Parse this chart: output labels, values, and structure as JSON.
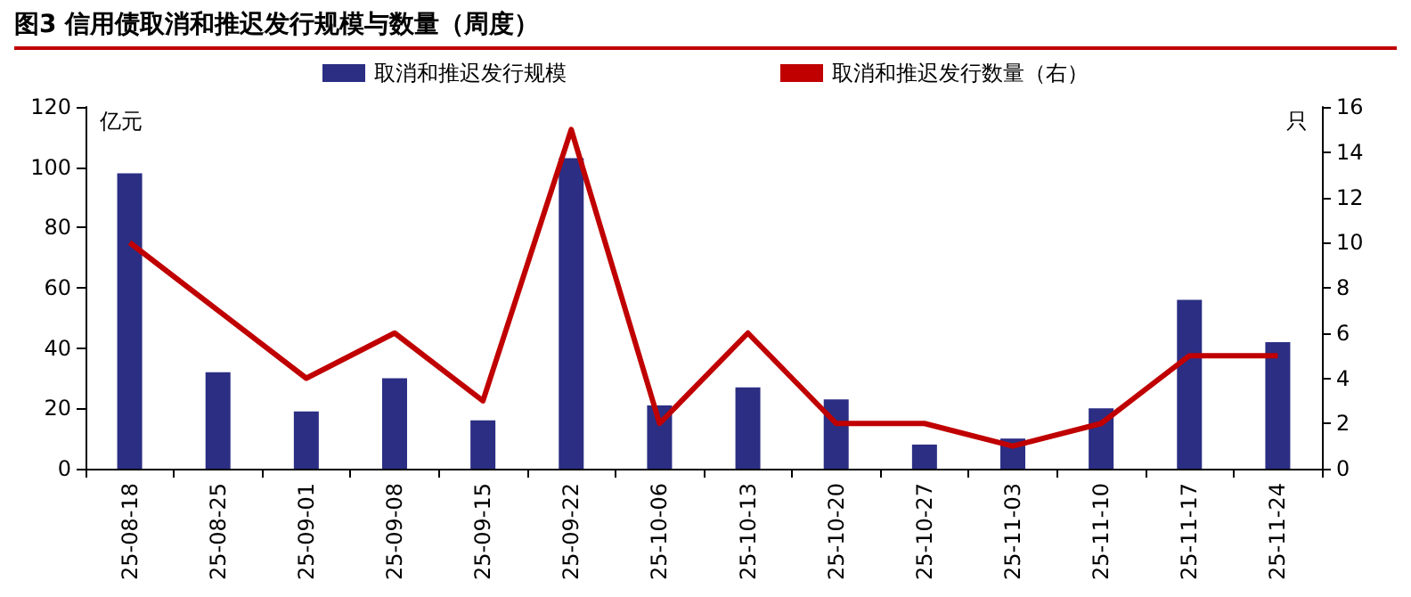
{
  "chart_data": {
    "type": "bar",
    "title": "图3  信用债取消和推迟发行规模与数量（周度）",
    "ylabel": "亿元",
    "y2label": "只",
    "categories": [
      "25-08-18",
      "25-08-25",
      "25-09-01",
      "25-09-08",
      "25-09-15",
      "25-09-22",
      "25-10-06",
      "25-10-13",
      "25-10-20",
      "25-10-27",
      "25-11-03",
      "25-11-10",
      "25-11-17",
      "25-11-24"
    ],
    "series": [
      {
        "name": "取消和推迟发行规模",
        "color": "#2b2e83",
        "values": [
          98,
          32,
          19,
          30,
          16,
          103,
          21,
          27,
          23,
          8,
          10,
          20,
          56,
          42
        ]
      },
      {
        "name": "取消和推迟发行数量（右）",
        "type": "line",
        "axis": "y2",
        "color": "#c00000",
        "values": [
          10,
          7,
          4,
          6,
          3,
          15,
          2,
          6,
          2,
          2,
          1,
          2,
          5,
          5
        ]
      }
    ],
    "ylim": [
      0,
      120
    ],
    "yticks": [
      0,
      20,
      40,
      60,
      80,
      100,
      120
    ],
    "y2lim": [
      0,
      16
    ],
    "y2ticks": [
      0,
      2,
      4,
      6,
      8,
      10,
      12,
      14,
      16
    ],
    "grid": false,
    "legend": "top",
    "marker": "none",
    "line_style": "solid"
  }
}
